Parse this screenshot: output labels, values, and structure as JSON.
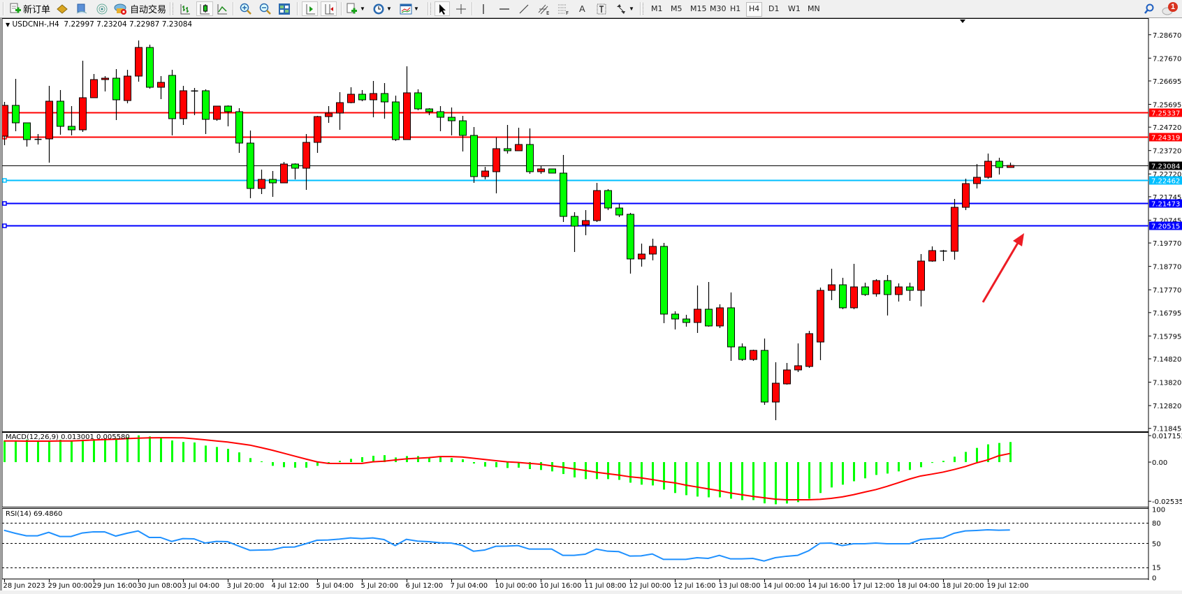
{
  "toolbar": {
    "new_order": "新订单",
    "auto_trading": "自动交易",
    "timeframes": [
      "M1",
      "M5",
      "M15",
      "M30",
      "H1",
      "H4",
      "D1",
      "W1",
      "MN"
    ],
    "active_timeframe": "H4",
    "notification_count": "1",
    "drawing_tools": {
      "text_tool": "A",
      "channel_suffix": "E",
      "fibo_suffix": "F"
    }
  },
  "chart": {
    "symbol": "USDCNH-,H4",
    "ohlc_readout": "7.22997 7.23204 7.22987 7.23084",
    "macd_label": "MACD(12,26,9) 0.013001 0.005580",
    "rsi_label": "RSI(14) 69.4860"
  },
  "chart_data": [
    {
      "type": "candlestick",
      "up_color": "#ff0000",
      "down_color": "#00ff00",
      "ylim": [
        7.11748,
        7.29319
      ],
      "y_ticks": [
        "7.28670",
        "7.27670",
        "7.26695",
        "7.25695",
        "7.24720",
        "7.23720",
        "7.22720",
        "7.21745",
        "7.20745",
        "7.19770",
        "7.18770",
        "7.17770",
        "7.16795",
        "7.15795",
        "7.14820",
        "7.13820",
        "7.12820",
        "7.11845"
      ],
      "x_labels": [
        "28 Jun 2023",
        "29 Jun 00:00",
        "29 Jun 16:00",
        "30 Jun 08:00",
        "3 Jul 04:00",
        "3 Jul 20:00",
        "4 Jul 12:00",
        "5 Jul 04:00",
        "5 Jul 20:00",
        "6 Jul 12:00",
        "7 Jul 04:00",
        "10 Jul 00:00",
        "10 Jul 16:00",
        "11 Jul 08:00",
        "12 Jul 00:00",
        "12 Jul 16:00",
        "13 Jul 08:00",
        "14 Jul 00:00",
        "14 Jul 16:00",
        "17 Jul 12:00",
        "18 Jul 04:00",
        "18 Jul 20:00",
        "19 Jul 12:00"
      ],
      "x_label_every_bars": 4,
      "hlines": [
        {
          "price": "7.25337",
          "color": "#ff0000"
        },
        {
          "price": "7.24319",
          "color": "#ff0000"
        },
        {
          "price": "7.23084",
          "color": "#000000",
          "kind": "bid"
        },
        {
          "price": "7.22462",
          "color": "#00bfff"
        },
        {
          "price": "7.21473",
          "color": "#0000ff"
        },
        {
          "price": "7.20515",
          "color": "#0000ff"
        }
      ],
      "annotation": {
        "type": "arrow",
        "color": "#ed1c24",
        "direction": "up-right"
      },
      "ohlc": [
        [
          7.24337,
          7.25799,
          7.23949,
          7.2565
        ],
        [
          7.2565,
          7.26783,
          7.24546,
          7.24904
        ],
        [
          7.24904,
          7.24904,
          7.2389,
          7.24188
        ],
        [
          7.24188,
          7.24426,
          7.23979,
          7.24198
        ],
        [
          7.24218,
          7.26485,
          7.23203,
          7.25829
        ],
        [
          7.25829,
          7.26306,
          7.24397,
          7.24755
        ],
        [
          7.24755,
          7.2562,
          7.24367,
          7.24605
        ],
        [
          7.24605,
          7.27559,
          7.24516,
          7.25978
        ],
        [
          7.25978,
          7.26992,
          7.25978,
          7.26753
        ],
        [
          7.26753,
          7.26902,
          7.26246,
          7.26813
        ],
        [
          7.26813,
          7.27201,
          7.25023,
          7.25888
        ],
        [
          7.25858,
          7.27171,
          7.25739,
          7.26902
        ],
        [
          7.26902,
          7.28424,
          7.26664,
          7.28126
        ],
        [
          7.28126,
          7.28245,
          7.26366,
          7.26425
        ],
        [
          7.26425,
          7.26902,
          7.25918,
          7.26634
        ],
        [
          7.26932,
          7.27171,
          7.24367,
          7.25083
        ],
        [
          7.25083,
          7.26485,
          7.24814,
          7.26276
        ],
        [
          7.26276,
          7.26395,
          7.25232,
          7.26266
        ],
        [
          7.26276,
          7.26336,
          7.24426,
          7.25053
        ],
        [
          7.25053,
          7.2562,
          7.24993,
          7.2562
        ],
        [
          7.2562,
          7.2565,
          7.24755,
          7.25381
        ],
        [
          7.25381,
          7.2553,
          7.23621,
          7.24039
        ],
        [
          7.24039,
          7.24576,
          7.21682,
          7.221
        ],
        [
          7.221,
          7.22905,
          7.21861,
          7.22487
        ],
        [
          7.22487,
          7.22845,
          7.21742,
          7.22338
        ],
        [
          7.22338,
          7.23233,
          7.22338,
          7.23144
        ],
        [
          7.23144,
          7.23174,
          7.22487,
          7.22965
        ],
        [
          7.22965,
          7.24426,
          7.2204,
          7.24069
        ],
        [
          7.24069,
          7.25202,
          7.23621,
          7.25172
        ],
        [
          7.25172,
          7.2562,
          7.24904,
          7.25321
        ],
        [
          7.25321,
          7.26216,
          7.24605,
          7.25769
        ],
        [
          7.25769,
          7.26425,
          7.25739,
          7.26127
        ],
        [
          7.26127,
          7.26306,
          7.25829,
          7.25888
        ],
        [
          7.25888,
          7.26694,
          7.25142,
          7.26157
        ],
        [
          7.26157,
          7.26604,
          7.25083,
          7.25799
        ],
        [
          7.25799,
          7.26067,
          7.24128,
          7.24188
        ],
        [
          7.24188,
          7.2732,
          7.24188,
          7.26187
        ],
        [
          7.26187,
          7.26336,
          7.25441,
          7.255
        ],
        [
          7.255,
          7.2553,
          7.25232,
          7.25381
        ],
        [
          7.25381,
          7.2562,
          7.24546,
          7.25142
        ],
        [
          7.25142,
          7.2556,
          7.24367,
          7.24993
        ],
        [
          7.24993,
          7.25202,
          7.23681,
          7.24367
        ],
        [
          7.24367,
          7.24725,
          7.22338,
          7.22607
        ],
        [
          7.22607,
          7.23024,
          7.22487,
          7.22845
        ],
        [
          7.22816,
          7.24277,
          7.21891,
          7.238
        ],
        [
          7.238,
          7.24814,
          7.23591,
          7.23711
        ],
        [
          7.23711,
          7.24695,
          7.23711,
          7.23979
        ],
        [
          7.23979,
          7.24665,
          7.22726,
          7.22816
        ],
        [
          7.22816,
          7.23054,
          7.22726,
          7.22935
        ],
        [
          7.22935,
          7.22935,
          7.22756,
          7.22756
        ],
        [
          7.22756,
          7.23532,
          7.20668,
          7.20906
        ],
        [
          7.20906,
          7.21085,
          7.19385,
          7.20489
        ],
        [
          7.20548,
          7.21175,
          7.20101,
          7.20727
        ],
        [
          7.20727,
          7.22338,
          7.20668,
          7.2201
        ],
        [
          7.2201,
          7.2207,
          7.21175,
          7.21264
        ],
        [
          7.21264,
          7.21443,
          7.20877,
          7.20966
        ],
        [
          7.20996,
          7.21056,
          7.1846,
          7.19087
        ],
        [
          7.19087,
          7.19743,
          7.18759,
          7.19296
        ],
        [
          7.19296,
          7.19952,
          7.19027,
          7.19624
        ],
        [
          7.19624,
          7.19773,
          7.16342,
          7.1673
        ],
        [
          7.1673,
          7.16849,
          7.16074,
          7.16521
        ],
        [
          7.16521,
          7.167,
          7.16193,
          7.16372
        ],
        [
          7.16372,
          7.17953,
          7.15925,
          7.16939
        ],
        [
          7.16939,
          7.18102,
          7.16193,
          7.16223
        ],
        [
          7.16223,
          7.17148,
          7.16133,
          7.16999
        ],
        [
          7.16999,
          7.17655,
          7.14731,
          7.15328
        ],
        [
          7.15328,
          7.15477,
          7.14731,
          7.14791
        ],
        [
          7.14791,
          7.15209,
          7.14731,
          7.15179
        ],
        [
          7.15179,
          7.15686,
          7.12852,
          7.12971
        ],
        [
          7.12971,
          7.14672,
          7.12196,
          7.13777
        ],
        [
          7.13747,
          7.14642,
          7.13717,
          7.14344
        ],
        [
          7.14344,
          7.15477,
          7.14254,
          7.14523
        ],
        [
          7.14493,
          7.16014,
          7.14433,
          7.15895
        ],
        [
          7.15537,
          7.17864,
          7.14761,
          7.17744
        ],
        [
          7.17744,
          7.18669,
          7.17327,
          7.17983
        ],
        [
          7.17983,
          7.18281,
          7.16939,
          7.16999
        ],
        [
          7.16999,
          7.18878,
          7.16939,
          7.17893
        ],
        [
          7.17893,
          7.18072,
          7.17506,
          7.17565
        ],
        [
          7.17595,
          7.18222,
          7.17476,
          7.18162
        ],
        [
          7.18162,
          7.18401,
          7.1667,
          7.17565
        ],
        [
          7.17565,
          7.18043,
          7.17267,
          7.17893
        ],
        [
          7.17893,
          7.18072,
          7.17297,
          7.17744
        ],
        [
          7.17744,
          7.19296,
          7.17058,
          7.18997
        ],
        [
          7.18997,
          7.19624,
          7.18967,
          7.19445
        ],
        [
          7.19415,
          7.19475,
          7.18997,
          7.19425
        ],
        [
          7.19415,
          7.21652,
          7.19057,
          7.21294
        ],
        [
          7.21294,
          7.22517,
          7.21175,
          7.22308
        ],
        [
          7.22308,
          7.23144,
          7.221,
          7.22577
        ],
        [
          7.22577,
          7.23591,
          7.22517,
          7.23263
        ],
        [
          7.23263,
          7.23412,
          7.22696,
          7.22995
        ],
        [
          7.22997,
          7.23204,
          7.22987,
          7.23084
        ]
      ]
    },
    {
      "type": "bar+line",
      "title": "MACD(12,26,9) 0.013001 0.005580",
      "ylim": [
        -0.0289,
        0.019
      ],
      "y_ticks": [
        "0.017153",
        "0.00",
        "-0.025358"
      ],
      "histogram_color": "#00ff00",
      "signal_color": "#ff0000",
      "main": [
        0.014,
        0.014,
        0.0145,
        0.0137,
        0.014,
        0.0145,
        0.014,
        0.0145,
        0.0149,
        0.0152,
        0.0155,
        0.0161,
        0.0173,
        0.0166,
        0.0155,
        0.014,
        0.013,
        0.0127,
        0.0107,
        0.0098,
        0.0086,
        0.0063,
        0.0026,
        0.0005,
        -0.0024,
        -0.0033,
        -0.0036,
        -0.0036,
        -0.0024,
        0.0,
        0.0008,
        0.0021,
        0.0032,
        0.0041,
        0.0045,
        0.003,
        0.0039,
        0.0039,
        0.0032,
        0.0032,
        0.0026,
        0.0018,
        -0.0009,
        -0.0029,
        -0.0033,
        -0.0038,
        -0.0036,
        -0.0045,
        -0.0051,
        -0.006,
        -0.0077,
        -0.0099,
        -0.011,
        -0.011,
        -0.011,
        -0.0115,
        -0.0133,
        -0.0146,
        -0.0151,
        -0.0178,
        -0.02,
        -0.0214,
        -0.0223,
        -0.0228,
        -0.0228,
        -0.0237,
        -0.0246,
        -0.0246,
        -0.0267,
        -0.0273,
        -0.0268,
        -0.0259,
        -0.0237,
        -0.02,
        -0.0164,
        -0.0146,
        -0.0124,
        -0.0105,
        -0.0083,
        -0.0074,
        -0.006,
        -0.0051,
        -0.0033,
        -0.0005,
        0.0008,
        0.0035,
        0.0066,
        0.0092,
        0.0115,
        0.0124,
        0.013001
      ],
      "signal": [
        0.0137,
        0.0137,
        0.0136,
        0.0136,
        0.0136,
        0.0137,
        0.0137,
        0.014,
        0.0143,
        0.0146,
        0.0148,
        0.0152,
        0.0155,
        0.0157,
        0.0158,
        0.0158,
        0.0157,
        0.0151,
        0.0144,
        0.0137,
        0.013,
        0.012,
        0.011,
        0.0094,
        0.0077,
        0.0058,
        0.0039,
        0.002,
        0.0002,
        -0.0008,
        -0.0009,
        -0.0009,
        -0.0009,
        0.0002,
        0.0006,
        0.0014,
        0.0021,
        0.0025,
        0.0029,
        0.0036,
        0.0036,
        0.0033,
        0.0025,
        0.0017,
        0.0009,
        0.0002,
        -0.0002,
        -0.0008,
        -0.0014,
        -0.0024,
        -0.0033,
        -0.0044,
        -0.0054,
        -0.0066,
        -0.0075,
        -0.0084,
        -0.0095,
        -0.0102,
        -0.0113,
        -0.0125,
        -0.0134,
        -0.0149,
        -0.0161,
        -0.0173,
        -0.0185,
        -0.02,
        -0.0211,
        -0.0222,
        -0.0231,
        -0.024,
        -0.0244,
        -0.0244,
        -0.0244,
        -0.0241,
        -0.0235,
        -0.0225,
        -0.0211,
        -0.0194,
        -0.0178,
        -0.0157,
        -0.0134,
        -0.011,
        -0.009,
        -0.0078,
        -0.0065,
        -0.0048,
        -0.0029,
        -0.0005,
        0.0014,
        0.0041,
        0.00558
      ]
    },
    {
      "type": "line",
      "title": "RSI(14) 69.4860",
      "ylim": [
        -1.7,
        100.3
      ],
      "y_ticks": [
        "100",
        "80",
        "50",
        "15",
        "0"
      ],
      "levels": [
        80,
        50,
        15
      ],
      "line_color": "#1e90ff",
      "values": [
        69.0,
        64.6,
        60.9,
        60.9,
        66.0,
        59.9,
        59.9,
        65.0,
        66.7,
        66.7,
        60.5,
        64.6,
        68.0,
        58.5,
        58.5,
        52.7,
        56.8,
        56.5,
        50.3,
        52.7,
        52.4,
        45.9,
        39.8,
        40.1,
        40.5,
        44.2,
        44.6,
        49.3,
        54.4,
        54.8,
        56.1,
        57.8,
        56.8,
        57.8,
        55.4,
        46.6,
        55.8,
        53.1,
        52.4,
        50.7,
        50.3,
        46.9,
        38.4,
        40.1,
        45.6,
        45.9,
        46.6,
        41.5,
        41.5,
        41.5,
        32.3,
        32.3,
        34.0,
        41.5,
        38.4,
        37.8,
        31.3,
        31.6,
        34.4,
        26.5,
        26.5,
        26.5,
        28.9,
        27.9,
        32.3,
        27.2,
        27.2,
        27.9,
        24.1,
        28.9,
        31.0,
        32.3,
        39.1,
        50.0,
        50.3,
        46.6,
        49.3,
        49.3,
        50.3,
        49.3,
        49.3,
        49.3,
        55.4,
        56.8,
        57.8,
        64.6,
        68.0,
        68.7,
        69.7,
        69.0,
        69.486
      ]
    }
  ]
}
